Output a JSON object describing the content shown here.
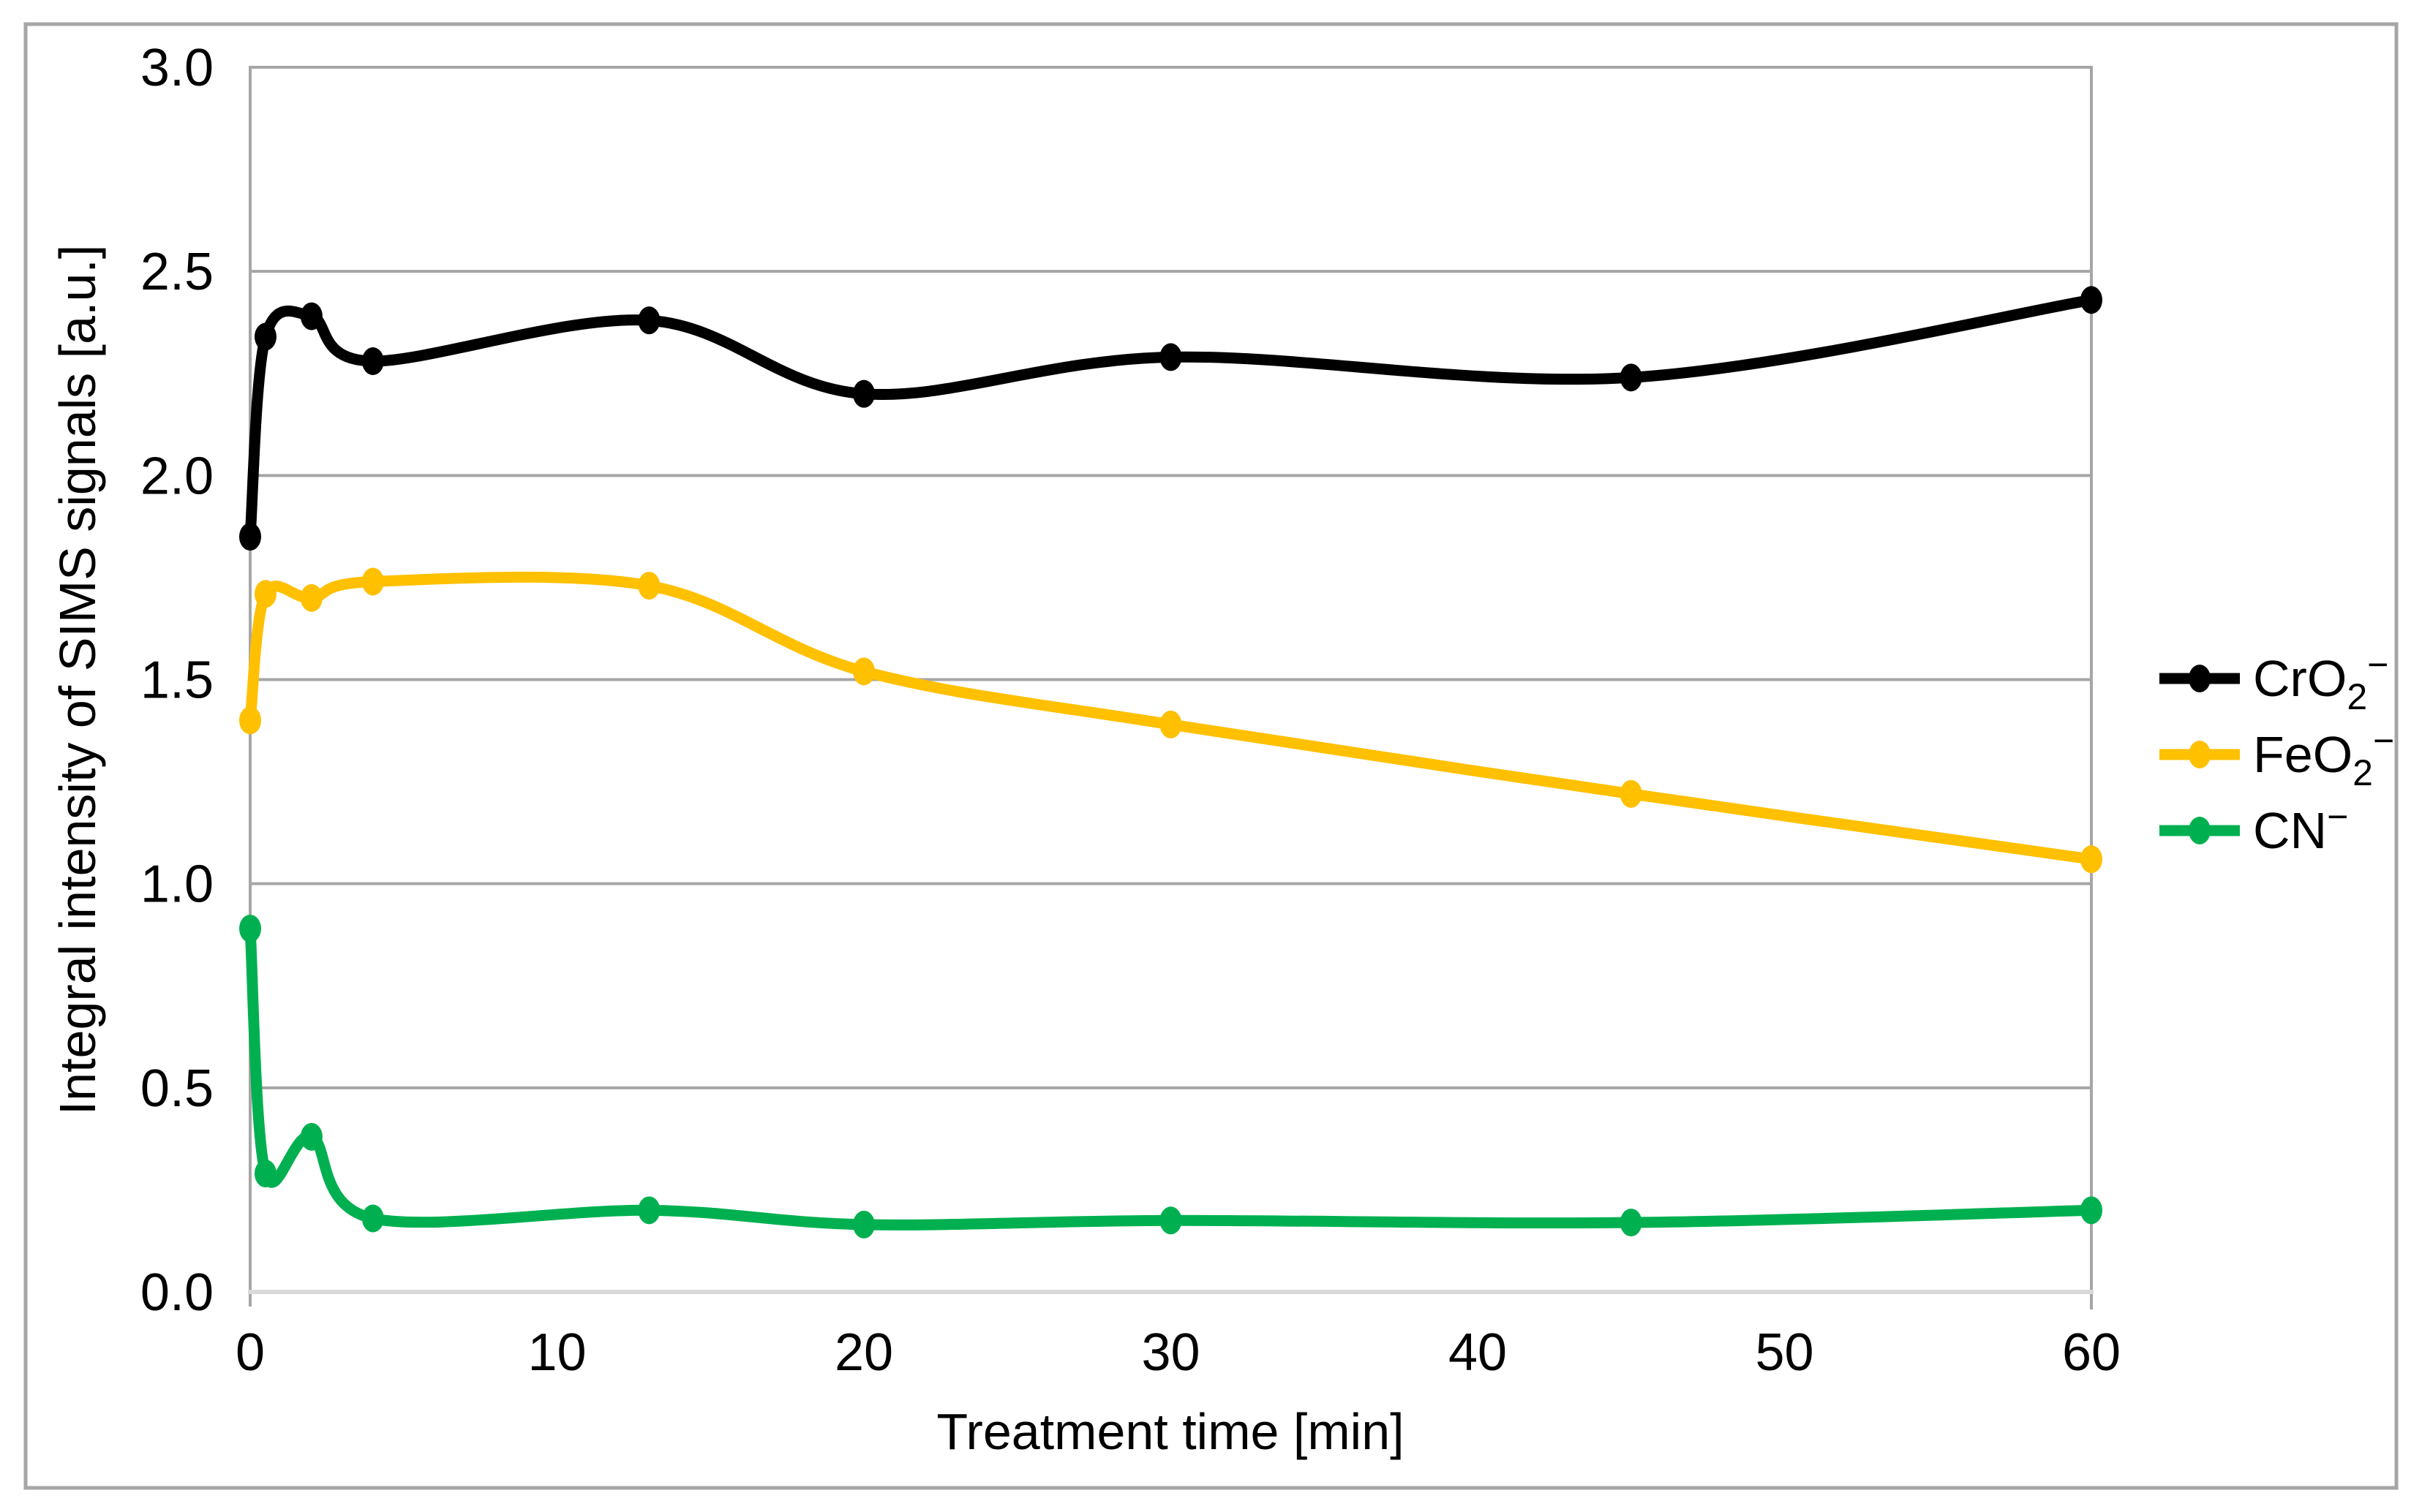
{
  "figure": {
    "background": "#FFFFFF",
    "outer_border_color": "#A6A6A6"
  },
  "chart_data": {
    "type": "line",
    "title": "",
    "xlabel": "Treatment time [min]",
    "ylabel": "Integral intensity of SIMS signals [a.u.]",
    "xlim": [
      0,
      60
    ],
    "ylim": [
      0.0,
      3.0
    ],
    "x_tick_values": [
      0,
      10,
      20,
      30,
      40,
      50,
      60
    ],
    "x_tick_labels": [
      "0",
      "10",
      "20",
      "30",
      "40",
      "50",
      "60"
    ],
    "y_tick_values": [
      0.0,
      0.5,
      1.0,
      1.5,
      2.0,
      2.5,
      3.0
    ],
    "y_tick_labels": [
      "0.0",
      "0.5",
      "1.0",
      "1.5",
      "2.0",
      "2.5",
      "3.0"
    ],
    "grid": "horizontal-only",
    "gridline_color": "#A6A6A6",
    "x_axis_line_color": "#D9D9D9",
    "y_axis_line_color": "#A6A6A6",
    "legend_position": "right-middle",
    "line_style": "smooth",
    "marker": "circle",
    "x": [
      0,
      0.5,
      2,
      4,
      13,
      20,
      30,
      45,
      60
    ],
    "series": [
      {
        "name": "CrO2-",
        "label_base": "CrO",
        "label_sub": "2",
        "label_sup": "−",
        "color": "#000000",
        "values": [
          1.85,
          2.34,
          2.39,
          2.28,
          2.38,
          2.2,
          2.29,
          2.24,
          2.43
        ]
      },
      {
        "name": "FeO2-",
        "label_base": "FeO",
        "label_sub": "2",
        "label_sup": "−",
        "color": "#FFC000",
        "values": [
          1.4,
          1.71,
          1.7,
          1.74,
          1.73,
          1.52,
          1.39,
          1.22,
          1.06
        ]
      },
      {
        "name": "CN-",
        "label_base": "CN",
        "label_sub": "",
        "label_sup": "−",
        "color": "#00B050",
        "values": [
          0.89,
          0.29,
          0.38,
          0.18,
          0.2,
          0.165,
          0.175,
          0.17,
          0.2
        ]
      }
    ]
  }
}
